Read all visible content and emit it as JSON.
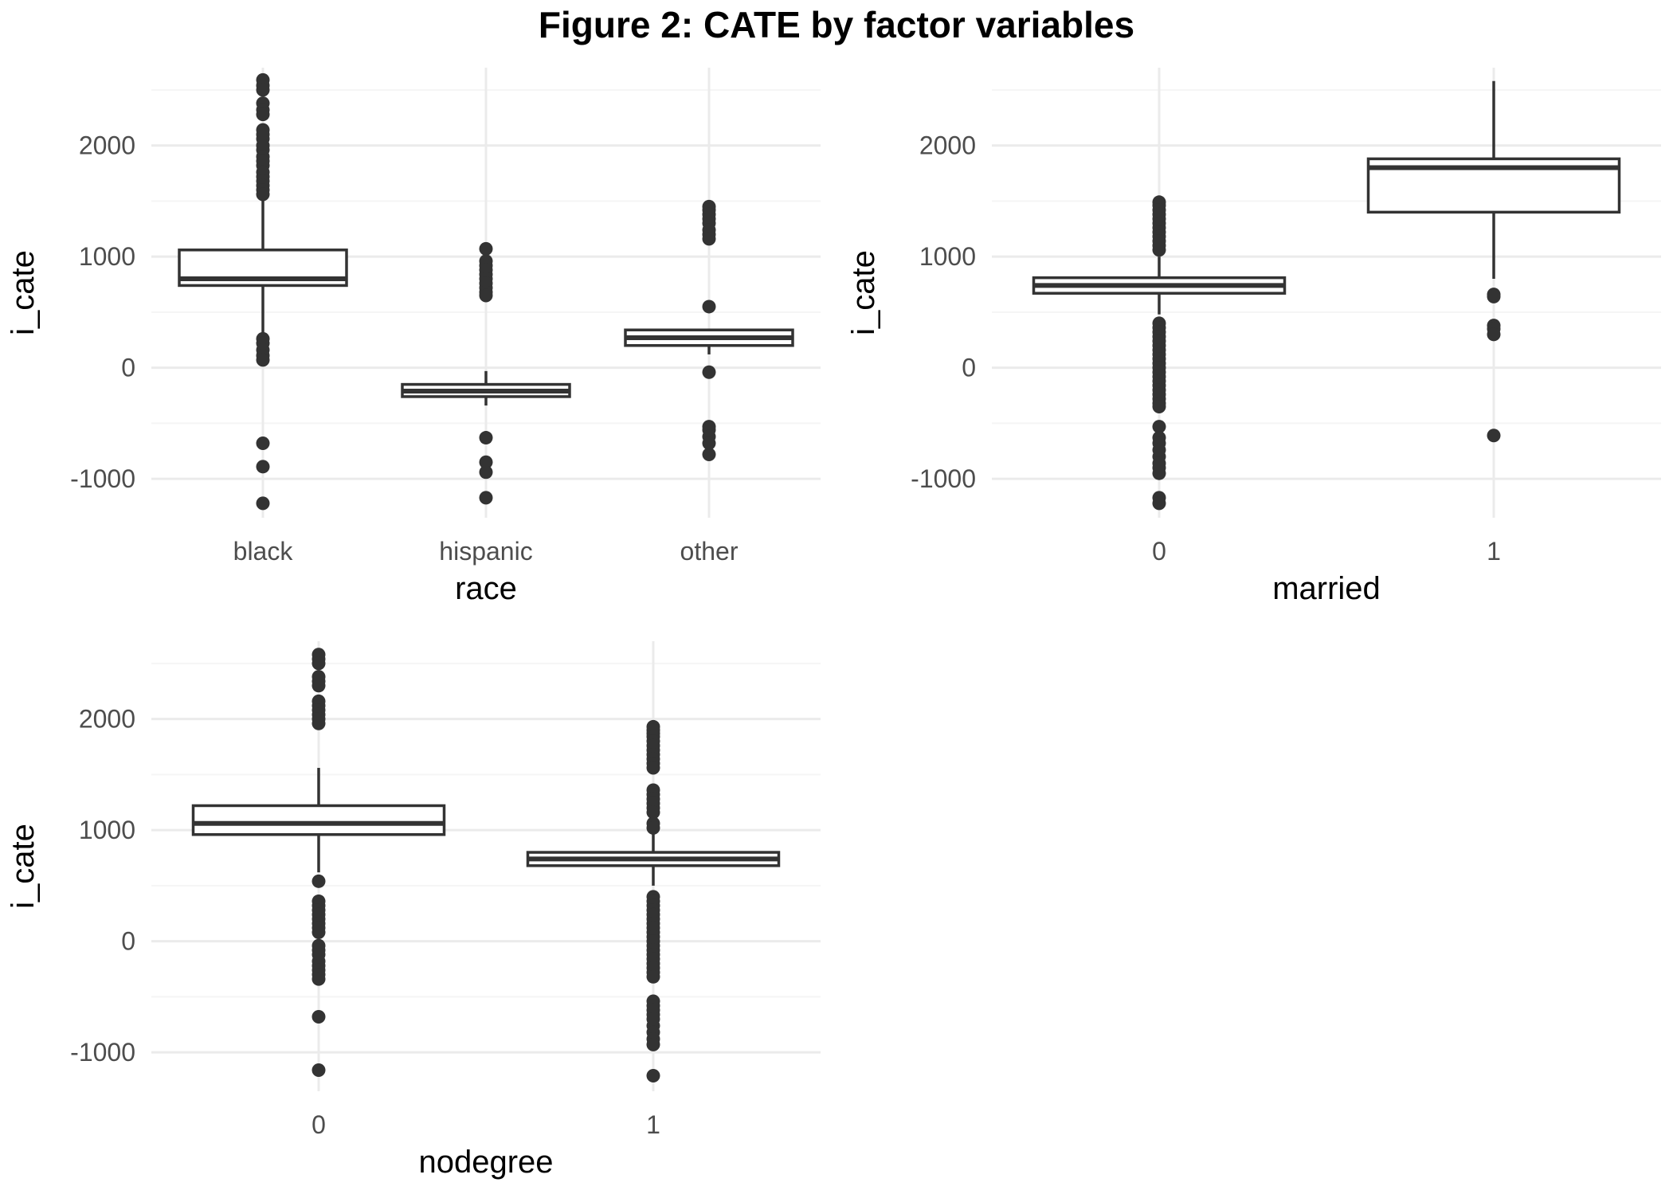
{
  "figure": {
    "title": "Figure 2: CATE by factor variables"
  },
  "colors": {
    "box_stroke": "#333333",
    "point": "#333333",
    "grid_major": "#ebebeb",
    "grid_minor": "#f5f5f5",
    "tick_text": "#4d4d4d",
    "label_text": "#000000"
  },
  "chart_data": [
    {
      "type": "box",
      "xlabel": "race",
      "ylabel": "i_cate",
      "ylim": [
        -1350,
        2700
      ],
      "y_ticks": [
        -1000,
        0,
        1000,
        2000
      ],
      "grid": true,
      "categories": [
        "black",
        "hispanic",
        "other"
      ],
      "boxes": [
        {
          "category": "black",
          "q1": 740,
          "median": 800,
          "q3": 1060,
          "whisker_low": 80,
          "whisker_high": 1580,
          "outliers": [
            2590,
            2540,
            2500,
            2380,
            2320,
            2280,
            2140,
            2100,
            2060,
            2000,
            1960,
            1900,
            1860,
            1820,
            1760,
            1720,
            1680,
            1640,
            1600,
            1560,
            260,
            220,
            160,
            110,
            70,
            -680,
            -890,
            -1220
          ]
        },
        {
          "category": "hispanic",
          "q1": -260,
          "median": -210,
          "q3": -150,
          "whisker_low": -340,
          "whisker_high": -30,
          "outliers": [
            1070,
            960,
            920,
            880,
            840,
            800,
            760,
            720,
            680,
            650,
            -630,
            -850,
            -940,
            -1170
          ]
        },
        {
          "category": "other",
          "q1": 200,
          "median": 270,
          "q3": 340,
          "whisker_low": 120,
          "whisker_high": 350,
          "outliers": [
            1450,
            1420,
            1380,
            1340,
            1300,
            1240,
            1200,
            1160,
            550,
            -40,
            -530,
            -560,
            -620,
            -680,
            -780
          ]
        }
      ]
    },
    {
      "type": "box",
      "xlabel": "married",
      "ylabel": "i_cate",
      "ylim": [
        -1350,
        2700
      ],
      "y_ticks": [
        -1000,
        0,
        1000,
        2000
      ],
      "grid": true,
      "categories": [
        "0",
        "1"
      ],
      "boxes": [
        {
          "category": "0",
          "q1": 670,
          "median": 740,
          "q3": 810,
          "whisker_low": 480,
          "whisker_high": 1000,
          "outliers": [
            1490,
            1460,
            1420,
            1380,
            1340,
            1300,
            1260,
            1220,
            1180,
            1140,
            1100,
            1060,
            400,
            360,
            320,
            280,
            240,
            200,
            160,
            120,
            80,
            40,
            0,
            -40,
            -80,
            -120,
            -160,
            -200,
            -240,
            -280,
            -320,
            -350,
            -530,
            -630,
            -680,
            -740,
            -800,
            -860,
            -900,
            -950,
            -1170,
            -1220
          ]
        },
        {
          "category": "1",
          "q1": 1400,
          "median": 1800,
          "q3": 1880,
          "whisker_low": 800,
          "whisker_high": 2580,
          "outliers": [
            660,
            640,
            380,
            350,
            300,
            -610
          ]
        }
      ]
    },
    {
      "type": "box",
      "xlabel": "nodegree",
      "ylabel": "i_cate",
      "ylim": [
        -1350,
        2700
      ],
      "y_ticks": [
        -1000,
        0,
        1000,
        2000
      ],
      "grid": true,
      "categories": [
        "0",
        "1"
      ],
      "boxes": [
        {
          "category": "0",
          "q1": 960,
          "median": 1060,
          "q3": 1220,
          "whisker_low": 620,
          "whisker_high": 1560,
          "outliers": [
            2580,
            2540,
            2500,
            2380,
            2340,
            2300,
            2160,
            2120,
            2080,
            2040,
            2000,
            1960,
            540,
            360,
            320,
            280,
            240,
            200,
            160,
            120,
            80,
            -40,
            -80,
            -120,
            -180,
            -220,
            -260,
            -300,
            -340,
            -680,
            -1160
          ]
        },
        {
          "category": "1",
          "q1": 680,
          "median": 740,
          "q3": 800,
          "whisker_low": 500,
          "whisker_high": 980,
          "outliers": [
            1930,
            1900,
            1870,
            1840,
            1800,
            1760,
            1720,
            1680,
            1640,
            1600,
            1560,
            1360,
            1320,
            1280,
            1240,
            1200,
            1160,
            1060,
            1020,
            400,
            360,
            320,
            280,
            240,
            200,
            160,
            120,
            80,
            40,
            0,
            -40,
            -80,
            -120,
            -160,
            -200,
            -240,
            -280,
            -320,
            -540,
            -580,
            -620,
            -660,
            -700,
            -760,
            -820,
            -880,
            -930,
            -1210
          ]
        }
      ]
    }
  ]
}
